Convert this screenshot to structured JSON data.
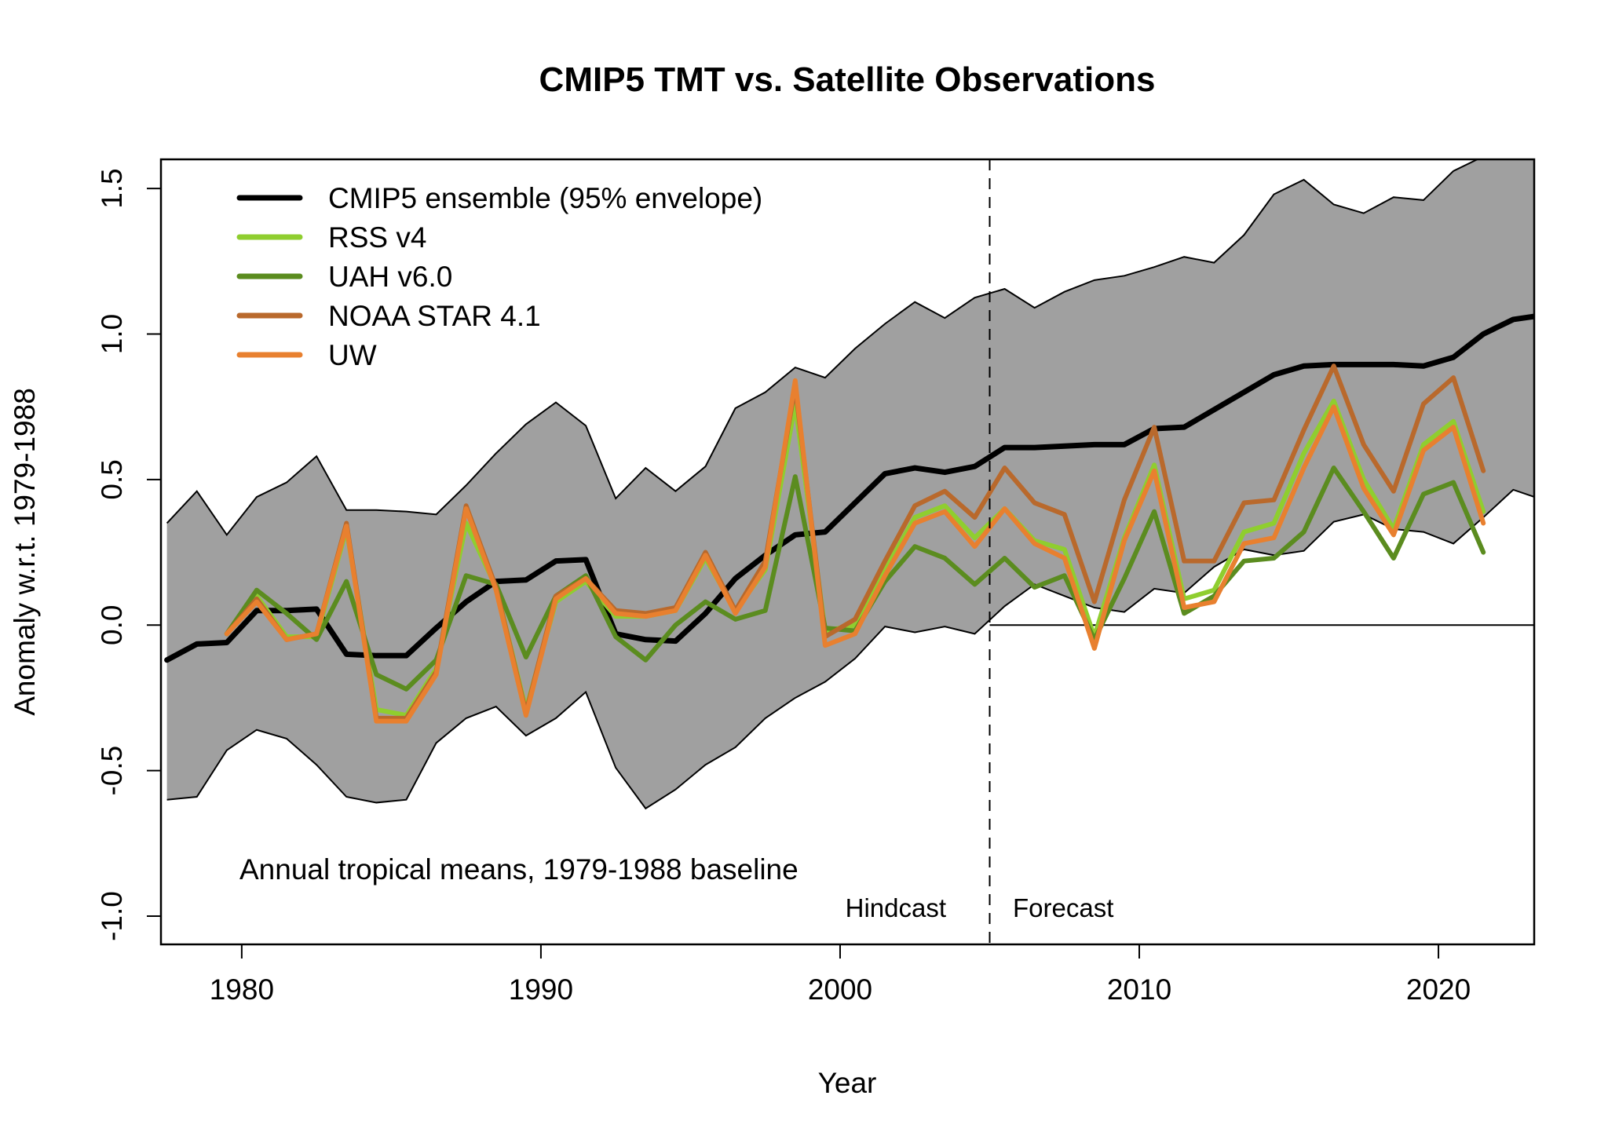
{
  "chart_data": {
    "type": "line",
    "title": "CMIP5 TMT vs. Satellite Observations",
    "xlabel": "Year",
    "ylabel": "Anomaly w.r.t. 1979-1988",
    "xlim": [
      1977.3,
      2023.2
    ],
    "ylim": [
      -1.097,
      1.6
    ],
    "xticks": [
      1980,
      1990,
      2000,
      2010,
      2020
    ],
    "yticks": [
      -1.0,
      -0.5,
      0.0,
      0.5,
      1.0,
      1.5
    ],
    "ytick_labels": [
      "-1.0",
      "-0.5",
      "0.0",
      "0.5",
      "1.0",
      "1.5"
    ],
    "grid": false,
    "legend_position": "top-left",
    "annotation": "Annual tropical means, 1979-1988 baseline",
    "divider_year": 2005,
    "divider_labels": {
      "left": "Hindcast",
      "right": "Forecast"
    },
    "zero_line_from": 2005,
    "envelope": {
      "color": "#a0a0a0",
      "x": [
        1977.5,
        1978.5,
        1979.5,
        1980.5,
        1981.5,
        1982.5,
        1983.5,
        1984.5,
        1985.5,
        1986.5,
        1987.5,
        1988.5,
        1989.5,
        1990.5,
        1991.5,
        1992.5,
        1993.5,
        1994.5,
        1995.5,
        1996.5,
        1997.5,
        1998.5,
        1999.5,
        2000.5,
        2001.5,
        2002.5,
        2003.5,
        2004.5,
        2005.5,
        2006.5,
        2007.5,
        2008.5,
        2009.5,
        2010.5,
        2011.5,
        2012.5,
        2013.5,
        2014.5,
        2015.5,
        2016.5,
        2017.5,
        2018.5,
        2019.5,
        2020.5,
        2021.5,
        2022.5,
        2023.5
      ],
      "upper": [
        0.35,
        0.46,
        0.31,
        0.44,
        0.49,
        0.58,
        0.395,
        0.395,
        0.39,
        0.38,
        0.48,
        0.59,
        0.69,
        0.765,
        0.685,
        0.435,
        0.54,
        0.46,
        0.545,
        0.745,
        0.8,
        0.885,
        0.85,
        0.95,
        1.035,
        1.11,
        1.055,
        1.125,
        1.155,
        1.09,
        1.145,
        1.185,
        1.2,
        1.23,
        1.265,
        1.245,
        1.34,
        1.48,
        1.53,
        1.445,
        1.415,
        1.47,
        1.46,
        1.56,
        1.61,
        1.66,
        1.7
      ],
      "lower": [
        -0.6,
        -0.59,
        -0.43,
        -0.36,
        -0.39,
        -0.48,
        -0.59,
        -0.61,
        -0.6,
        -0.405,
        -0.32,
        -0.28,
        -0.38,
        -0.32,
        -0.23,
        -0.49,
        -0.63,
        -0.565,
        -0.48,
        -0.42,
        -0.32,
        -0.25,
        -0.195,
        -0.115,
        -0.005,
        -0.025,
        -0.005,
        -0.03,
        0.065,
        0.14,
        0.1,
        0.06,
        0.045,
        0.125,
        0.11,
        0.2,
        0.26,
        0.24,
        0.255,
        0.355,
        0.38,
        0.33,
        0.32,
        0.28,
        0.37,
        0.465,
        0.43
      ]
    },
    "series": [
      {
        "name": "CMIP5 ensemble (95% envelope)",
        "color": "#000000",
        "x": [
          1977.5,
          1978.5,
          1979.5,
          1980.5,
          1981.5,
          1982.5,
          1983.5,
          1984.5,
          1985.5,
          1986.5,
          1987.5,
          1988.5,
          1989.5,
          1990.5,
          1991.5,
          1992.5,
          1993.5,
          1994.5,
          1995.5,
          1996.5,
          1997.5,
          1998.5,
          1999.5,
          2000.5,
          2001.5,
          2002.5,
          2003.5,
          2004.5,
          2005.5,
          2006.5,
          2007.5,
          2008.5,
          2009.5,
          2010.5,
          2011.5,
          2012.5,
          2013.5,
          2014.5,
          2015.5,
          2016.5,
          2017.5,
          2018.5,
          2019.5,
          2020.5,
          2021.5,
          2022.5,
          2023.5
        ],
        "values": [
          -0.12,
          -0.065,
          -0.06,
          0.05,
          0.05,
          0.055,
          -0.1,
          -0.105,
          -0.105,
          -0.01,
          0.08,
          0.15,
          0.155,
          0.22,
          0.225,
          -0.03,
          -0.05,
          -0.055,
          0.04,
          0.16,
          0.24,
          0.31,
          0.32,
          0.42,
          0.52,
          0.54,
          0.525,
          0.545,
          0.61,
          0.61,
          0.615,
          0.62,
          0.62,
          0.675,
          0.68,
          0.74,
          0.8,
          0.86,
          0.89,
          0.895,
          0.895,
          0.895,
          0.89,
          0.92,
          1.0,
          1.05,
          1.065
        ]
      },
      {
        "name": "RSS v4",
        "color": "#8fce2f",
        "x_start": 1979.5,
        "values": [
          -0.03,
          0.1,
          -0.04,
          -0.04,
          0.33,
          -0.29,
          -0.31,
          -0.15,
          0.35,
          0.13,
          -0.29,
          0.08,
          0.15,
          0.03,
          0.03,
          0.05,
          0.23,
          0.05,
          0.19,
          0.76,
          -0.02,
          0.0,
          0.19,
          0.37,
          0.41,
          0.3,
          0.4,
          0.29,
          0.26,
          -0.04,
          0.3,
          0.55,
          0.09,
          0.12,
          0.32,
          0.35,
          0.59,
          0.77,
          0.5,
          0.33,
          0.62,
          0.7,
          0.39
        ]
      },
      {
        "name": "UAH v6.0",
        "color": "#5b8c1f",
        "x_start": 1979.5,
        "values": [
          -0.03,
          0.12,
          0.04,
          -0.05,
          0.15,
          -0.17,
          -0.22,
          -0.12,
          0.17,
          0.14,
          -0.11,
          0.1,
          0.17,
          -0.04,
          -0.12,
          0.0,
          0.08,
          0.02,
          0.05,
          0.51,
          -0.01,
          -0.02,
          0.15,
          0.27,
          0.23,
          0.14,
          0.23,
          0.13,
          0.17,
          -0.05,
          0.16,
          0.39,
          0.04,
          0.1,
          0.22,
          0.23,
          0.32,
          0.54,
          0.39,
          0.23,
          0.45,
          0.49,
          0.25
        ]
      },
      {
        "name": "NOAA STAR 4.1",
        "color": "#b9692c",
        "x_start": 1979.5,
        "values": [
          -0.03,
          0.09,
          -0.05,
          -0.03,
          0.35,
          -0.32,
          -0.32,
          -0.16,
          0.41,
          0.13,
          -0.3,
          0.1,
          0.16,
          0.05,
          0.04,
          0.06,
          0.25,
          0.05,
          0.22,
          0.82,
          -0.04,
          0.02,
          0.22,
          0.41,
          0.46,
          0.37,
          0.54,
          0.42,
          0.38,
          0.08,
          0.43,
          0.68,
          0.22,
          0.22,
          0.42,
          0.43,
          0.67,
          0.89,
          0.62,
          0.46,
          0.76,
          0.85,
          0.53
        ]
      },
      {
        "name": "UW",
        "color": "#e8802f",
        "x_start": 1979.5,
        "values": [
          -0.03,
          0.08,
          -0.05,
          -0.03,
          0.34,
          -0.33,
          -0.33,
          -0.17,
          0.4,
          0.12,
          -0.31,
          0.09,
          0.16,
          0.04,
          0.03,
          0.05,
          0.24,
          0.04,
          0.2,
          0.84,
          -0.07,
          -0.03,
          0.17,
          0.35,
          0.39,
          0.27,
          0.4,
          0.28,
          0.23,
          -0.08,
          0.29,
          0.53,
          0.06,
          0.08,
          0.28,
          0.3,
          0.54,
          0.75,
          0.47,
          0.31,
          0.6,
          0.68,
          0.35
        ]
      }
    ]
  }
}
